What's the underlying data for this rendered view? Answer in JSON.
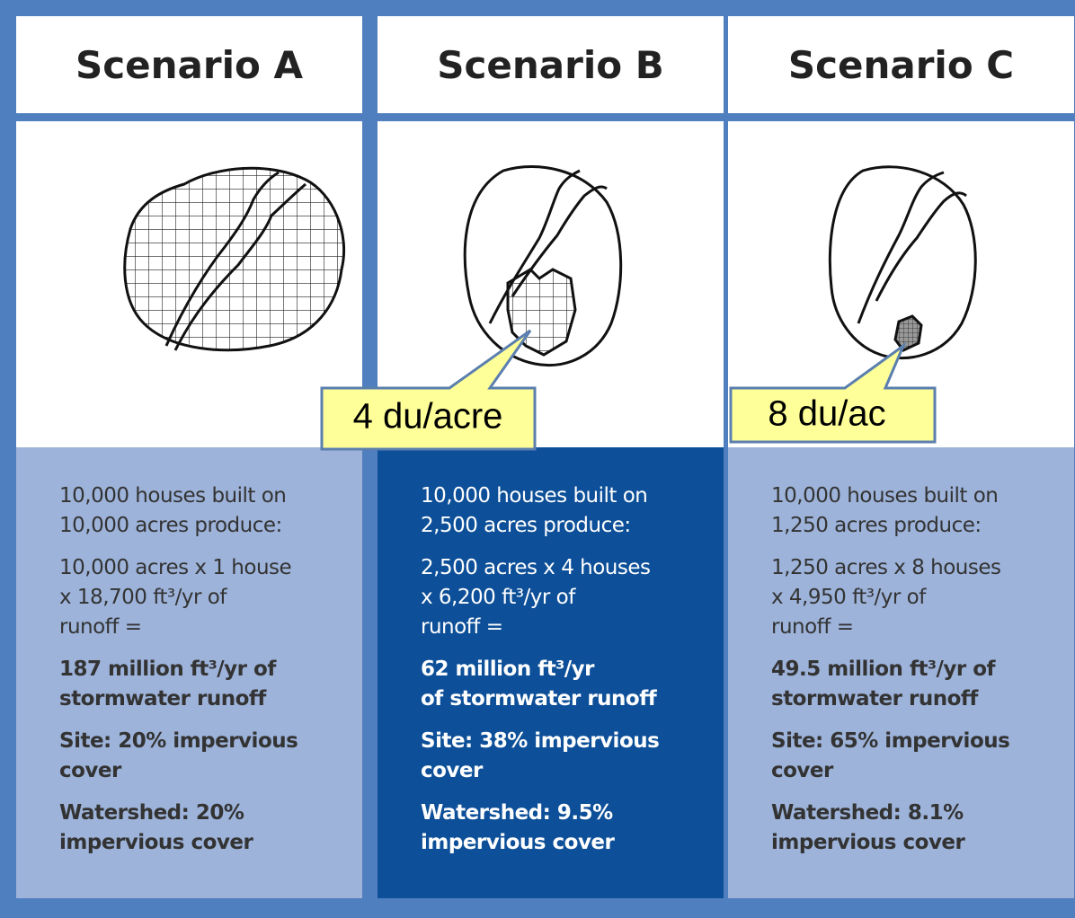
{
  "scenarios": [
    {
      "title": "Scenario A",
      "description": [
        "10,000 houses built on",
        "10,000 acres produce:"
      ],
      "calculation": [
        "10,000 acres x 1 house",
        "x 18,700 ft³/yr of",
        "runoff ="
      ],
      "runoff": [
        "187 million ft³/yr of",
        "stormwater runoff"
      ],
      "site": [
        "Site: 20% impervious",
        "cover"
      ],
      "watershed": [
        "Watershed: 20%",
        "impervious cover"
      ]
    },
    {
      "title": "Scenario B",
      "description": [
        "10,000 houses built on",
        "2,500 acres produce:"
      ],
      "calculation": [
        "2,500 acres x 4 houses",
        "x 6,200 ft³/yr of",
        "runoff ="
      ],
      "runoff": [
        "62 million ft³/yr",
        "of stormwater runoff"
      ],
      "site": [
        "Site: 38% impervious",
        "cover"
      ],
      "watershed": [
        "Watershed: 9.5%",
        "impervious cover"
      ]
    },
    {
      "title": "Scenario C",
      "description": [
        "10,000 houses built on",
        "1,250 acres produce:"
      ],
      "calculation": [
        "1,250 acres x 8 houses",
        "x 4,950 ft³/yr of",
        "runoff ="
      ],
      "runoff": [
        "49.5 million ft³/yr of",
        "stormwater runoff"
      ],
      "site": [
        "Site: 65% impervious",
        "cover"
      ],
      "watershed": [
        "Watershed: 8.1%",
        "impervious cover"
      ]
    }
  ],
  "callouts": [
    {
      "label": "4 du/acre"
    },
    {
      "label": "8 du/ac"
    }
  ]
}
